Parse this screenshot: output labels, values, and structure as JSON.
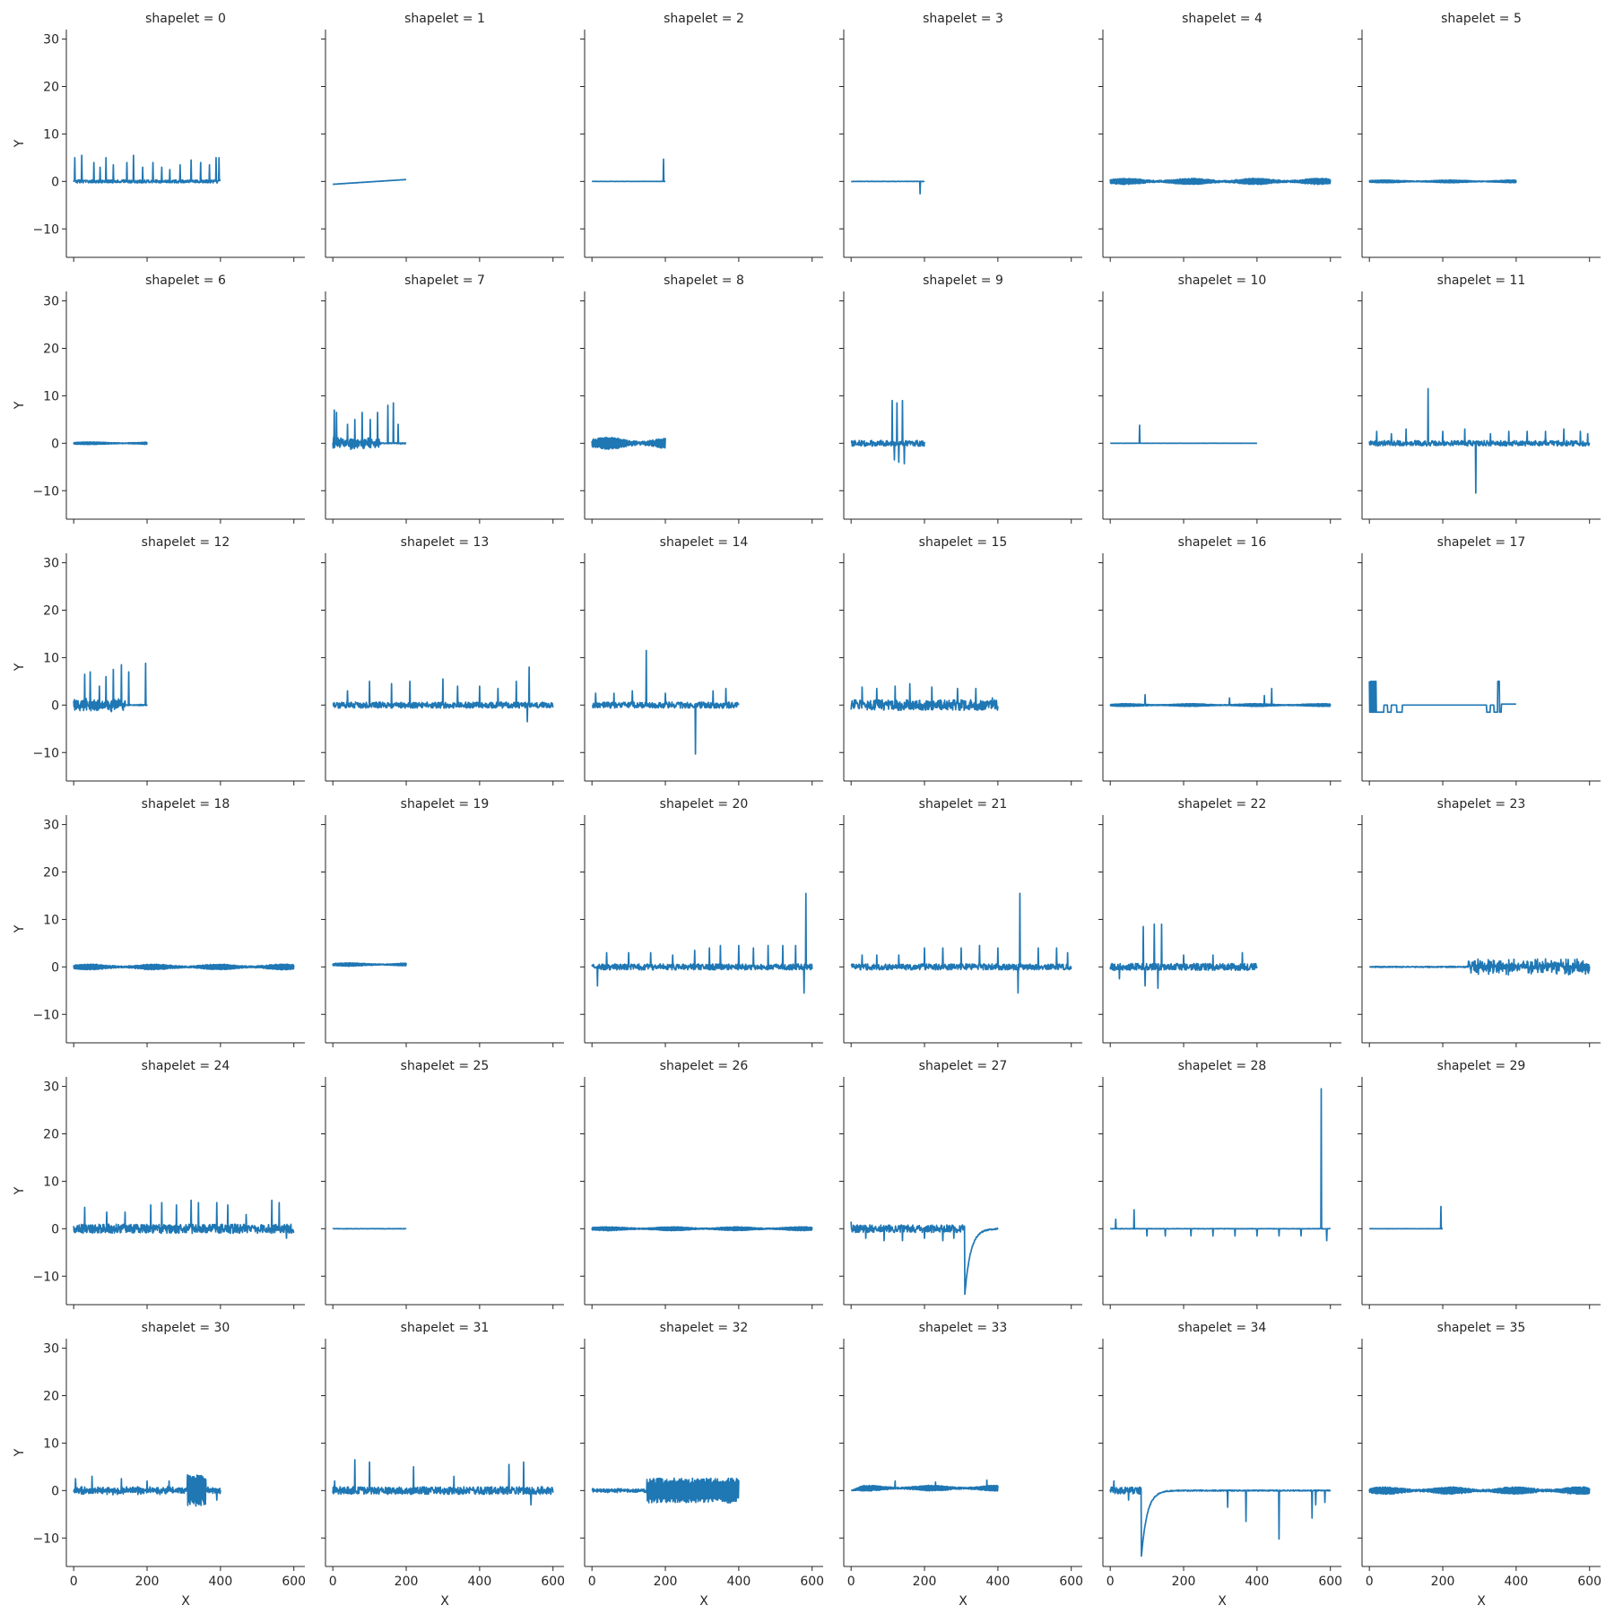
{
  "chart_data": {
    "type": "line",
    "layout": "facet-grid",
    "facet_label": "shapelet",
    "columns": 6,
    "xlabel": "X",
    "ylabel": "Y",
    "xlim": [
      -20,
      630
    ],
    "ylim": [
      -16,
      32
    ],
    "xticks": [
      0,
      200,
      400,
      600
    ],
    "yticks": [
      -10,
      0,
      10,
      20,
      30
    ],
    "grid": false,
    "legend": "none",
    "line_color": "#1f77b4",
    "panels": [
      {
        "title": "shapelet = 0",
        "length": 400,
        "style": "noise",
        "amp": 0.4,
        "seed": 1,
        "spikes": [
          [
            3,
            5.0
          ],
          [
            22,
            5.5
          ],
          [
            55,
            4.0
          ],
          [
            72,
            3.0
          ],
          [
            88,
            5.0
          ],
          [
            108,
            3.5
          ],
          [
            145,
            4.0
          ],
          [
            163,
            5.5
          ],
          [
            188,
            3.0
          ],
          [
            216,
            4.0
          ],
          [
            240,
            3.0
          ],
          [
            262,
            2.5
          ],
          [
            290,
            3.5
          ],
          [
            320,
            4.5
          ],
          [
            346,
            4.0
          ],
          [
            370,
            3.5
          ],
          [
            388,
            5.0
          ],
          [
            396,
            5.0
          ]
        ]
      },
      {
        "title": "shapelet = 1",
        "length": 200,
        "style": "ramp",
        "start": -0.6,
        "end": 0.4,
        "amp": 0.05,
        "seed": 2
      },
      {
        "title": "shapelet = 2",
        "length": 200,
        "style": "flat",
        "amp": 0.05,
        "seed": 3,
        "spikes": [
          [
            195,
            4.7
          ]
        ]
      },
      {
        "title": "shapelet = 3",
        "length": 200,
        "style": "flat",
        "amp": 0.08,
        "seed": 4,
        "spikes": [
          [
            188,
            -2.6
          ]
        ]
      },
      {
        "title": "shapelet = 4",
        "length": 600,
        "style": "band",
        "amp": 1.1,
        "seed": 5
      },
      {
        "title": "shapelet = 5",
        "length": 400,
        "style": "band",
        "amp": 0.5,
        "seed": 6
      },
      {
        "title": "shapelet = 6",
        "length": 200,
        "style": "band",
        "amp": 0.45,
        "seed": 7
      },
      {
        "title": "shapelet = 7",
        "length": 200,
        "style": "burst",
        "amp": 1.4,
        "burst": [
          0,
          130
        ],
        "seed": 8,
        "spikes": [
          [
            4,
            7.0
          ],
          [
            10,
            6.5
          ],
          [
            40,
            4.0
          ],
          [
            60,
            5.0
          ],
          [
            80,
            6.5
          ],
          [
            102,
            5.0
          ],
          [
            122,
            6.5
          ],
          [
            150,
            8.0
          ],
          [
            165,
            8.5
          ],
          [
            178,
            4.0
          ]
        ]
      },
      {
        "title": "shapelet = 8",
        "length": 200,
        "style": "band",
        "amp": 2.1,
        "seed": 9
      },
      {
        "title": "shapelet = 9",
        "length": 200,
        "style": "noise",
        "amp": 0.8,
        "seed": 10,
        "spikes": [
          [
            112,
            9.0
          ],
          [
            118,
            -3.5
          ],
          [
            125,
            8.5
          ],
          [
            130,
            -4.0
          ],
          [
            140,
            9.0
          ],
          [
            145,
            -4.3
          ]
        ]
      },
      {
        "title": "shapelet = 10",
        "length": 400,
        "style": "flat",
        "amp": 0.04,
        "seed": 11,
        "spikes": [
          [
            80,
            3.8
          ]
        ]
      },
      {
        "title": "shapelet = 11",
        "length": 600,
        "style": "noise",
        "amp": 0.7,
        "seed": 12,
        "spikes": [
          [
            20,
            2.5
          ],
          [
            60,
            2.0
          ],
          [
            100,
            3.0
          ],
          [
            160,
            11.5
          ],
          [
            200,
            2.5
          ],
          [
            260,
            3.0
          ],
          [
            290,
            -10.5
          ],
          [
            330,
            2.0
          ],
          [
            380,
            2.5
          ],
          [
            430,
            2.5
          ],
          [
            480,
            2.5
          ],
          [
            530,
            3.0
          ],
          [
            575,
            2.5
          ],
          [
            595,
            2.0
          ]
        ]
      },
      {
        "title": "shapelet = 12",
        "length": 200,
        "style": "burst",
        "amp": 1.5,
        "burst": [
          0,
          140
        ],
        "seed": 13,
        "spikes": [
          [
            30,
            6.5
          ],
          [
            45,
            7.0
          ],
          [
            70,
            4.0
          ],
          [
            88,
            6.0
          ],
          [
            108,
            7.5
          ],
          [
            130,
            8.5
          ],
          [
            150,
            7.0
          ],
          [
            196,
            8.8
          ]
        ]
      },
      {
        "title": "shapelet = 13",
        "length": 600,
        "style": "noise",
        "amp": 0.8,
        "seed": 14,
        "spikes": [
          [
            40,
            3.0
          ],
          [
            100,
            5.0
          ],
          [
            160,
            4.5
          ],
          [
            210,
            5.0
          ],
          [
            300,
            5.5
          ],
          [
            340,
            4.0
          ],
          [
            400,
            4.0
          ],
          [
            450,
            3.5
          ],
          [
            500,
            5.0
          ],
          [
            535,
            8.0
          ],
          [
            530,
            -3.5
          ]
        ]
      },
      {
        "title": "shapelet = 14",
        "length": 400,
        "style": "noise",
        "amp": 0.8,
        "seed": 15,
        "spikes": [
          [
            10,
            2.5
          ],
          [
            60,
            2.5
          ],
          [
            110,
            3.0
          ],
          [
            148,
            11.5
          ],
          [
            200,
            2.5
          ],
          [
            282,
            -10.3
          ],
          [
            330,
            3.0
          ],
          [
            365,
            3.5
          ]
        ]
      },
      {
        "title": "shapelet = 15",
        "length": 400,
        "style": "noise",
        "amp": 1.4,
        "seed": 16,
        "spikes": [
          [
            30,
            3.8
          ],
          [
            70,
            3.5
          ],
          [
            120,
            4.0
          ],
          [
            160,
            4.5
          ],
          [
            220,
            3.8
          ],
          [
            290,
            3.5
          ],
          [
            340,
            3.5
          ],
          [
            385,
            1.5
          ]
        ]
      },
      {
        "title": "shapelet = 16",
        "length": 600,
        "style": "band",
        "amp": 0.5,
        "seed": 17,
        "spikes": [
          [
            95,
            2.2
          ],
          [
            325,
            1.5
          ],
          [
            420,
            2.0
          ],
          [
            440,
            3.5
          ]
        ]
      },
      {
        "title": "shapelet = 17",
        "length": 400,
        "style": "steps",
        "seed": 18
      },
      {
        "title": "shapelet = 18",
        "length": 600,
        "style": "band",
        "amp": 1.0,
        "seed": 19
      },
      {
        "title": "shapelet = 19",
        "length": 200,
        "style": "band",
        "amp": 0.6,
        "offset": 0.5,
        "seed": 20
      },
      {
        "title": "shapelet = 20",
        "length": 600,
        "style": "noise",
        "amp": 0.8,
        "seed": 21,
        "spikes": [
          [
            15,
            -4.0
          ],
          [
            40,
            3.0
          ],
          [
            100,
            3.0
          ],
          [
            160,
            3.0
          ],
          [
            220,
            2.5
          ],
          [
            280,
            3.5
          ],
          [
            320,
            4.0
          ],
          [
            350,
            4.5
          ],
          [
            400,
            4.5
          ],
          [
            440,
            4.0
          ],
          [
            480,
            4.5
          ],
          [
            520,
            4.5
          ],
          [
            555,
            4.5
          ],
          [
            578,
            -5.5
          ],
          [
            583,
            15.5
          ]
        ]
      },
      {
        "title": "shapelet = 21",
        "length": 600,
        "style": "noise",
        "amp": 0.8,
        "seed": 22,
        "spikes": [
          [
            30,
            2.5
          ],
          [
            70,
            2.5
          ],
          [
            130,
            2.5
          ],
          [
            200,
            4.0
          ],
          [
            250,
            4.0
          ],
          [
            300,
            4.0
          ],
          [
            350,
            4.5
          ],
          [
            400,
            4.0
          ],
          [
            455,
            -5.5
          ],
          [
            460,
            15.5
          ],
          [
            510,
            4.0
          ],
          [
            560,
            4.0
          ],
          [
            590,
            3.0
          ]
        ]
      },
      {
        "title": "shapelet = 22",
        "length": 400,
        "style": "noise",
        "amp": 0.9,
        "seed": 23,
        "spikes": [
          [
            25,
            -2.5
          ],
          [
            90,
            8.5
          ],
          [
            95,
            -4.0
          ],
          [
            120,
            9.0
          ],
          [
            130,
            -4.5
          ],
          [
            140,
            9.0
          ],
          [
            200,
            2.5
          ],
          [
            280,
            2.5
          ],
          [
            360,
            3.0
          ]
        ]
      },
      {
        "title": "shapelet = 23",
        "length": 600,
        "style": "burst",
        "amp": 1.8,
        "burst": [
          270,
          600
        ],
        "seed": 24
      },
      {
        "title": "shapelet = 24",
        "length": 600,
        "style": "noise",
        "amp": 1.2,
        "seed": 25,
        "spikes": [
          [
            30,
            4.5
          ],
          [
            90,
            3.5
          ],
          [
            140,
            3.5
          ],
          [
            210,
            5.0
          ],
          [
            240,
            5.5
          ],
          [
            280,
            5.0
          ],
          [
            320,
            6.0
          ],
          [
            340,
            5.5
          ],
          [
            390,
            5.5
          ],
          [
            420,
            5.0
          ],
          [
            470,
            3.0
          ],
          [
            540,
            6.0
          ],
          [
            560,
            5.5
          ],
          [
            580,
            -2.0
          ]
        ]
      },
      {
        "title": "shapelet = 25",
        "length": 200,
        "style": "flat",
        "amp": 0.08,
        "seed": 26
      },
      {
        "title": "shapelet = 26",
        "length": 600,
        "style": "band",
        "amp": 0.7,
        "seed": 27
      },
      {
        "title": "shapelet = 27",
        "length": 400,
        "style": "drop",
        "amp": 1.0,
        "drop_at": 310,
        "drop_to": -13.8,
        "seed": 28,
        "spikes": [
          [
            0,
            1.5
          ],
          [
            40,
            -2.0
          ],
          [
            90,
            -2.5
          ],
          [
            140,
            -2.5
          ],
          [
            200,
            -2.0
          ],
          [
            250,
            -2.5
          ],
          [
            280,
            -2.0
          ]
        ]
      },
      {
        "title": "shapelet = 28",
        "length": 600,
        "style": "flat",
        "amp": 0.1,
        "seed": 29,
        "spikes": [
          [
            15,
            2.0
          ],
          [
            65,
            4.0
          ],
          [
            100,
            -1.5
          ],
          [
            150,
            -1.5
          ],
          [
            220,
            -1.5
          ],
          [
            280,
            -1.5
          ],
          [
            340,
            -1.5
          ],
          [
            400,
            -1.5
          ],
          [
            460,
            -1.5
          ],
          [
            520,
            -1.5
          ],
          [
            575,
            29.5
          ],
          [
            590,
            -2.5
          ]
        ]
      },
      {
        "title": "shapelet = 29",
        "length": 200,
        "style": "flat",
        "amp": 0.05,
        "seed": 30,
        "spikes": [
          [
            195,
            4.7
          ]
        ]
      },
      {
        "title": "shapelet = 30",
        "length": 400,
        "style": "burst",
        "amp": 0.9,
        "burst": [
          0,
          400
        ],
        "seed": 31,
        "block": [
          310,
          360,
          3.3
        ],
        "spikes": [
          [
            5,
            2.5
          ],
          [
            50,
            3.0
          ],
          [
            130,
            2.5
          ],
          [
            200,
            2.0
          ],
          [
            260,
            2.0
          ],
          [
            390,
            -2.0
          ]
        ]
      },
      {
        "title": "shapelet = 31",
        "length": 600,
        "style": "noise",
        "amp": 1.0,
        "seed": 32,
        "spikes": [
          [
            5,
            2.0
          ],
          [
            60,
            6.5
          ],
          [
            100,
            6.0
          ],
          [
            220,
            5.0
          ],
          [
            330,
            3.0
          ],
          [
            480,
            5.5
          ],
          [
            520,
            6.0
          ],
          [
            540,
            -3.0
          ]
        ]
      },
      {
        "title": "shapelet = 32",
        "length": 400,
        "style": "burst",
        "amp": 0.5,
        "burst": [
          0,
          150
        ],
        "seed": 33,
        "block": [
          150,
          400,
          2.6
        ]
      },
      {
        "title": "shapelet = 33",
        "length": 400,
        "style": "band",
        "amp": 1.0,
        "ramp_in": 30,
        "offset": 0.5,
        "seed": 34,
        "spikes": [
          [
            120,
            2.0
          ],
          [
            230,
            1.8
          ],
          [
            370,
            2.2
          ]
        ]
      },
      {
        "title": "shapelet = 34",
        "length": 600,
        "style": "drop",
        "amp": 0.9,
        "drop_at": 85,
        "drop_to": -13.8,
        "seed": 35,
        "spikes": [
          [
            10,
            2.0
          ],
          [
            50,
            -2.0
          ],
          [
            320,
            -3.5
          ],
          [
            370,
            -6.5
          ],
          [
            460,
            -10.2
          ],
          [
            550,
            -5.8
          ],
          [
            560,
            -3.0
          ],
          [
            585,
            -2.5
          ]
        ]
      },
      {
        "title": "shapelet = 35",
        "length": 600,
        "style": "band",
        "amp": 1.3,
        "seed": 36
      }
    ]
  }
}
